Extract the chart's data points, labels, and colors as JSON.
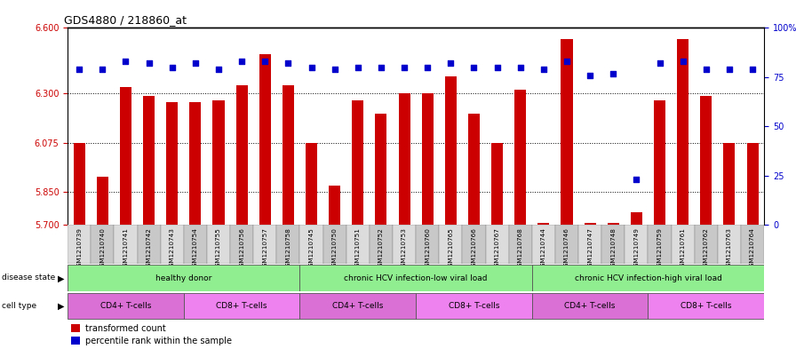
{
  "title": "GDS4880 / 218860_at",
  "samples": [
    "GSM1210739",
    "GSM1210740",
    "GSM1210741",
    "GSM1210742",
    "GSM1210743",
    "GSM1210754",
    "GSM1210755",
    "GSM1210756",
    "GSM1210757",
    "GSM1210758",
    "GSM1210745",
    "GSM1210750",
    "GSM1210751",
    "GSM1210752",
    "GSM1210753",
    "GSM1210760",
    "GSM1210765",
    "GSM1210766",
    "GSM1210767",
    "GSM1210768",
    "GSM1210744",
    "GSM1210746",
    "GSM1210747",
    "GSM1210748",
    "GSM1210749",
    "GSM1210759",
    "GSM1210761",
    "GSM1210762",
    "GSM1210763",
    "GSM1210764"
  ],
  "bar_values": [
    6.075,
    5.92,
    6.33,
    6.29,
    6.26,
    6.26,
    6.27,
    6.34,
    6.48,
    6.34,
    6.075,
    5.88,
    6.27,
    6.21,
    6.3,
    6.3,
    6.38,
    6.21,
    6.075,
    6.32,
    5.71,
    6.55,
    5.71,
    5.71,
    5.76,
    6.27,
    6.55,
    6.29,
    6.075,
    6.075
  ],
  "percentile_values": [
    79,
    79,
    83,
    82,
    80,
    82,
    79,
    83,
    83,
    82,
    80,
    79,
    80,
    80,
    80,
    80,
    82,
    80,
    80,
    80,
    79,
    83,
    76,
    77,
    23,
    82,
    83,
    79,
    79,
    79
  ],
  "ylim_left": [
    5.7,
    6.6
  ],
  "ylim_right": [
    0,
    100
  ],
  "yticks_left": [
    5.7,
    5.85,
    6.075,
    6.3,
    6.6
  ],
  "yticks_right": [
    0,
    25,
    50,
    75,
    100
  ],
  "hlines": [
    5.85,
    6.075,
    6.3
  ],
  "bar_color": "#CC0000",
  "dot_color": "#0000CC",
  "disease_groups_raw": [
    [
      0,
      10,
      "healthy donor",
      "#90EE90"
    ],
    [
      10,
      20,
      "chronic HCV infection-low viral load",
      "#90EE90"
    ],
    [
      20,
      30,
      "chronic HCV infection-high viral load",
      "#90EE90"
    ]
  ],
  "cell_groups_raw": [
    [
      0,
      5,
      "CD4+ T-cells",
      "#DA70D6"
    ],
    [
      5,
      10,
      "CD8+ T-cells",
      "#EE82EE"
    ],
    [
      10,
      15,
      "CD4+ T-cells",
      "#DA70D6"
    ],
    [
      15,
      20,
      "CD8+ T-cells",
      "#EE82EE"
    ],
    [
      20,
      25,
      "CD4+ T-cells",
      "#DA70D6"
    ],
    [
      25,
      30,
      "CD8+ T-cells",
      "#EE82EE"
    ]
  ],
  "disease_state_label": "disease state",
  "cell_type_label": "cell type",
  "bar_bg_colors": [
    "#D3D3D3",
    "#BEBEBE"
  ],
  "tick_bg_light": "#DCDCDC",
  "tick_bg_dark": "#C8C8C8"
}
